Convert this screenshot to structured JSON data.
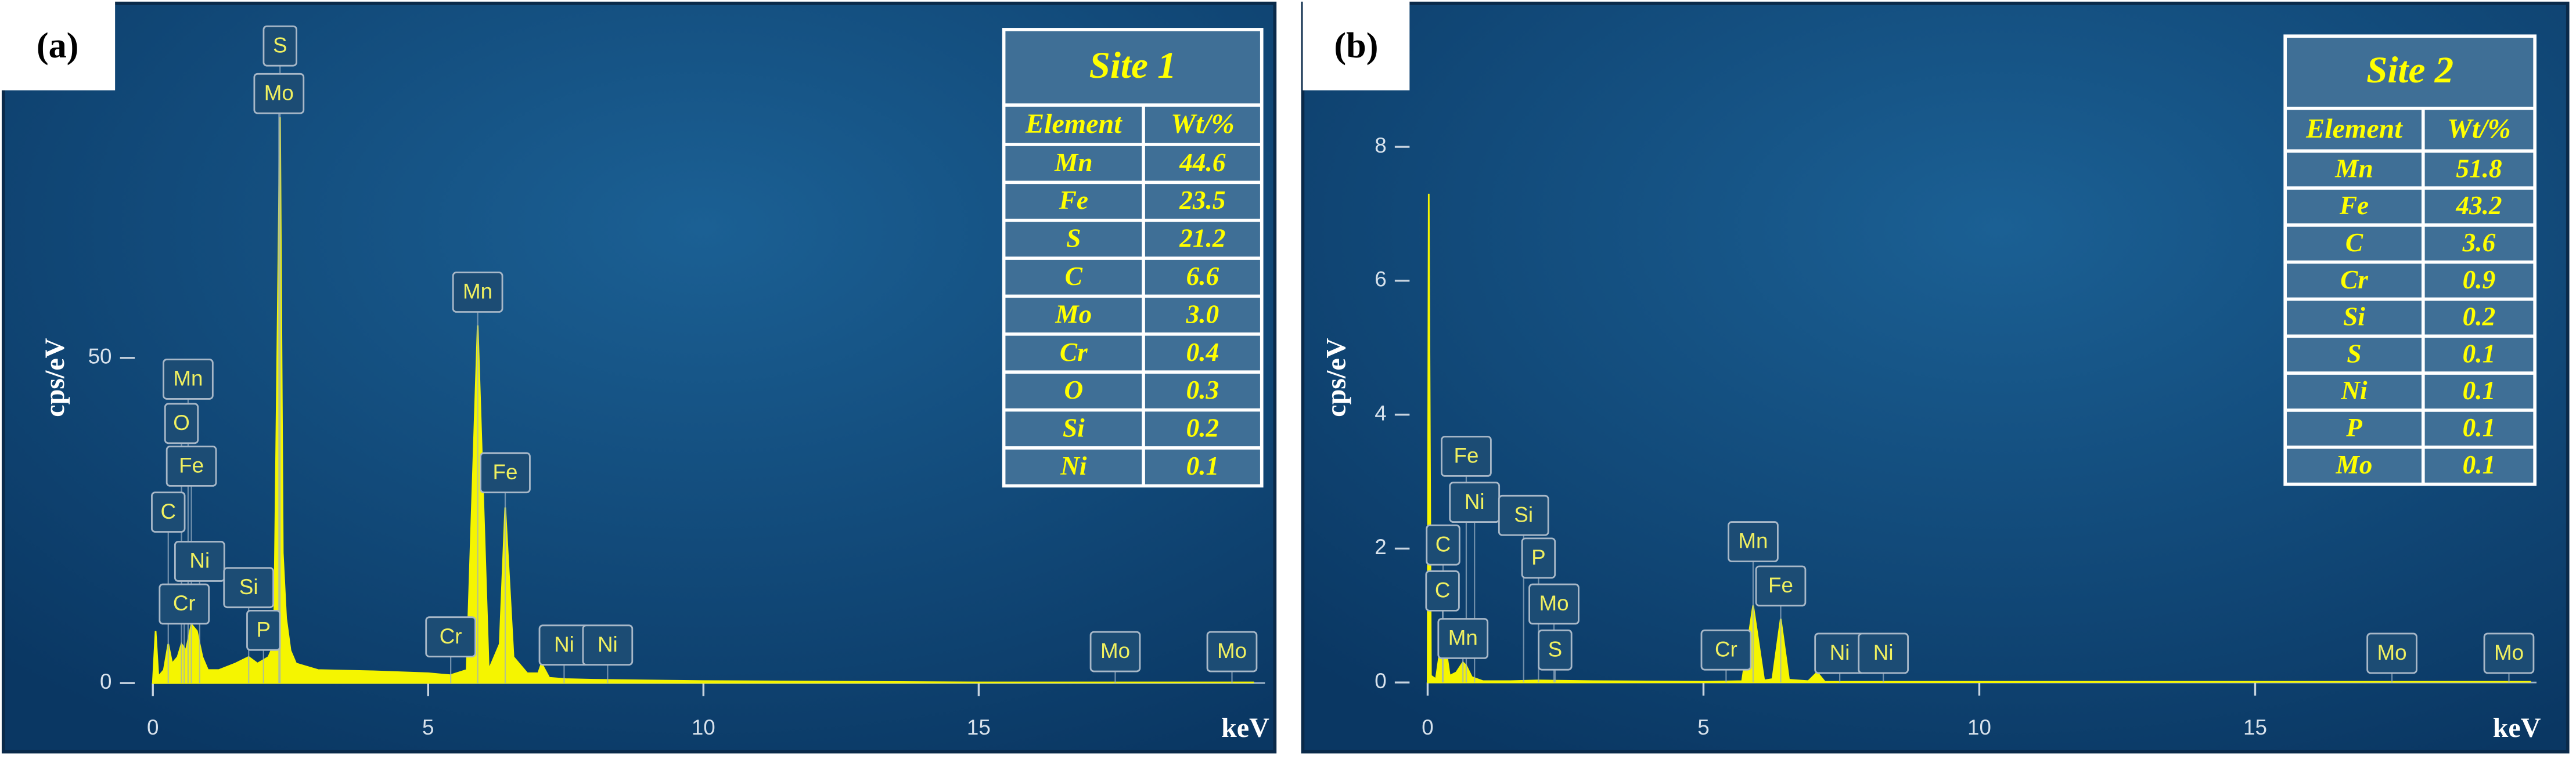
{
  "chart_data": [
    {
      "type": "area",
      "panel_label": "(a)",
      "xlabel": "keV",
      "ylabel": "cps/eV",
      "color": "#f5f500",
      "x": [
        0,
        0.05,
        0.1,
        0.2,
        0.28,
        0.35,
        0.45,
        0.52,
        0.6,
        0.7,
        0.8,
        0.9,
        1.0,
        1.2,
        1.5,
        1.74,
        1.9,
        2.1,
        2.2,
        2.31,
        2.36,
        2.42,
        2.5,
        2.6,
        3.0,
        4.0,
        5.0,
        5.4,
        5.7,
        5.9,
        6.1,
        6.3,
        6.4,
        6.55,
        6.8,
        7.0,
        7.06,
        7.2,
        7.5,
        8.0,
        10,
        15,
        20
      ],
      "values": [
        0,
        8,
        1,
        2,
        6,
        3,
        4,
        6,
        5,
        9,
        8,
        4,
        2,
        2,
        3,
        4,
        3,
        4,
        6,
        87,
        20,
        10,
        5,
        3,
        2,
        1.8,
        1.5,
        1.2,
        2,
        55,
        2,
        6,
        27,
        4,
        1.5,
        1.5,
        3,
        0.8,
        0.6,
        0.5,
        0.3,
        0.1,
        0.1
      ],
      "xlim": [
        0,
        20.2
      ],
      "xticks": [
        0,
        5,
        10,
        15
      ],
      "ylim": [
        -3,
        101
      ],
      "yticks": [
        0,
        50
      ],
      "peak_labels": [
        {
          "label": "S",
          "x": 2.31
        },
        {
          "label": "Mo",
          "x": 2.29
        },
        {
          "label": "Mn",
          "x": 5.9
        },
        {
          "label": "Fe",
          "x": 6.4
        },
        {
          "label": "Mn",
          "x": 0.64
        },
        {
          "label": "O",
          "x": 0.52
        },
        {
          "label": "Fe",
          "x": 0.7
        },
        {
          "label": "C",
          "x": 0.28
        },
        {
          "label": "Ni",
          "x": 0.85
        },
        {
          "label": "Cr",
          "x": 0.57
        },
        {
          "label": "Si",
          "x": 1.74
        },
        {
          "label": "P",
          "x": 2.01
        },
        {
          "label": "Cr",
          "x": 5.41
        },
        {
          "label": "Ni",
          "x": 7.47
        },
        {
          "label": "Ni",
          "x": 8.26
        },
        {
          "label": "Mo",
          "x": 17.48
        },
        {
          "label": "Mo",
          "x": 19.6
        }
      ],
      "table": {
        "title": "Site 1",
        "columns": [
          "Element",
          "Wt/%"
        ],
        "rows": [
          [
            "Mn",
            "44.6"
          ],
          [
            "Fe",
            "23.5"
          ],
          [
            "S",
            "21.2"
          ],
          [
            "C",
            "6.6"
          ],
          [
            "Mo",
            "3.0"
          ],
          [
            "Cr",
            "0.4"
          ],
          [
            "O",
            "0.3"
          ],
          [
            "Si",
            "0.2"
          ],
          [
            "Ni",
            "0.1"
          ]
        ]
      }
    },
    {
      "type": "area",
      "panel_label": "(b)",
      "xlabel": "keV",
      "ylabel": "cps/eV",
      "color": "#f5f500",
      "x": [
        0,
        0.02,
        0.06,
        0.15,
        0.28,
        0.4,
        0.52,
        0.64,
        0.7,
        0.8,
        1.0,
        1.5,
        2.0,
        3.0,
        5.0,
        5.7,
        5.9,
        6.1,
        6.25,
        6.4,
        6.55,
        6.9,
        7.06,
        7.2,
        8,
        20
      ],
      "values": [
        0,
        7.3,
        0.1,
        0.05,
        0.8,
        0.1,
        0.15,
        0.3,
        0.25,
        0.08,
        0.02,
        0.02,
        0.03,
        0.02,
        0.01,
        0.02,
        1.15,
        0.03,
        0.05,
        0.95,
        0.04,
        0.02,
        0.15,
        0.01,
        0.01,
        0.01
      ],
      "xlim": [
        0,
        20.1
      ],
      "xticks": [
        0,
        5,
        10,
        15
      ],
      "ylim": [
        -0.3,
        9.85
      ],
      "yticks": [
        0,
        2,
        4,
        6,
        8
      ],
      "peak_labels": [
        {
          "label": "Fe",
          "x": 0.7
        },
        {
          "label": "Ni",
          "x": 0.85
        },
        {
          "label": "C",
          "x": 0.28
        },
        {
          "label": "C",
          "x": 0.27
        },
        {
          "label": "Mn",
          "x": 0.64
        },
        {
          "label": "Si",
          "x": 1.74
        },
        {
          "label": "P",
          "x": 2.01
        },
        {
          "label": "Mo",
          "x": 2.29
        },
        {
          "label": "S",
          "x": 2.31
        },
        {
          "label": "Mn",
          "x": 5.9
        },
        {
          "label": "Fe",
          "x": 6.4
        },
        {
          "label": "Cr",
          "x": 5.41
        },
        {
          "label": "Ni",
          "x": 7.47
        },
        {
          "label": "Ni",
          "x": 8.26
        },
        {
          "label": "Mo",
          "x": 17.48
        },
        {
          "label": "Mo",
          "x": 19.6
        }
      ],
      "table": {
        "title": "Site 2",
        "columns": [
          "Element",
          "Wt/%"
        ],
        "rows": [
          [
            "Mn",
            "51.8"
          ],
          [
            "Fe",
            "43.2"
          ],
          [
            "C",
            "3.6"
          ],
          [
            "Cr",
            "0.9"
          ],
          [
            "Si",
            "0.2"
          ],
          [
            "S",
            "0.1"
          ],
          [
            "Ni",
            "0.1"
          ],
          [
            "P",
            "0.1"
          ],
          [
            "Mo",
            "0.1"
          ]
        ]
      }
    }
  ]
}
